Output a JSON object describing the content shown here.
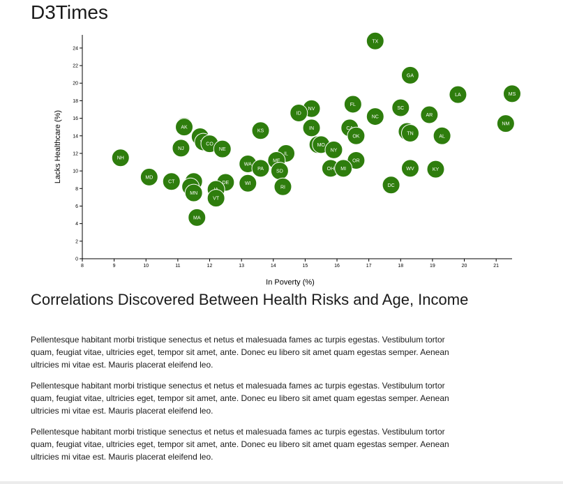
{
  "page": {
    "title": "D3Times"
  },
  "article": {
    "heading": "Correlations Discovered Between Health Risks and Age, Income",
    "paragraphs": [
      "Pellentesque habitant morbi tristique senectus et netus et malesuada fames ac turpis egestas. Vestibulum tortor quam, feugiat vitae, ultricies eget, tempor sit amet, ante. Donec eu libero sit amet quam egestas semper. Aenean ultricies mi vitae est. Mauris placerat eleifend leo.",
      "Pellentesque habitant morbi tristique senectus et netus et malesuada fames ac turpis egestas. Vestibulum tortor quam, feugiat vitae, ultricies eget, tempor sit amet, ante. Donec eu libero sit amet quam egestas semper. Aenean ultricies mi vitae est. Mauris placerat eleifend leo.",
      "Pellentesque habitant morbi tristique senectus et netus et malesuada fames ac turpis egestas. Vestibulum tortor quam, feugiat vitae, ultricies eget, tempor sit amet, ante. Donec eu libero sit amet quam egestas semper. Aenean ultricies mi vitae est. Mauris placerat eleifend leo."
    ]
  },
  "colors": {
    "marker": "#2e7d0d",
    "marker_label": "#ffffff"
  },
  "chart_data": {
    "type": "scatter",
    "title": "",
    "xlabel": "In Poverty (%)",
    "ylabel": "Lacks Healthcare (%)",
    "xlim": [
      8,
      21.5
    ],
    "ylim": [
      0,
      25.5
    ],
    "x_ticks": [
      8,
      9,
      10,
      11,
      12,
      13,
      14,
      15,
      16,
      17,
      18,
      19,
      20,
      21
    ],
    "y_ticks": [
      0,
      2,
      4,
      6,
      8,
      10,
      12,
      14,
      16,
      18,
      20,
      22,
      24
    ],
    "grid": false,
    "legend": "none",
    "points": [
      {
        "label": "TX",
        "x": 17.2,
        "y": 24.8
      },
      {
        "label": "GA",
        "x": 18.3,
        "y": 20.9
      },
      {
        "label": "LA",
        "x": 19.8,
        "y": 18.7
      },
      {
        "label": "MS",
        "x": 21.5,
        "y": 18.8
      },
      {
        "label": "FL",
        "x": 16.5,
        "y": 17.6
      },
      {
        "label": "SC",
        "x": 18.0,
        "y": 17.2
      },
      {
        "label": "NV",
        "x": 15.2,
        "y": 17.1
      },
      {
        "label": "ID",
        "x": 14.8,
        "y": 16.6
      },
      {
        "label": "NC",
        "x": 17.2,
        "y": 16.2
      },
      {
        "label": "AR",
        "x": 18.9,
        "y": 16.4
      },
      {
        "label": "NM",
        "x": 21.3,
        "y": 15.4
      },
      {
        "label": "WY",
        "x": 11.2,
        "y": 15.1
      },
      {
        "label": "AK",
        "x": 11.2,
        "y": 15.0
      },
      {
        "label": "CA",
        "x": 16.4,
        "y": 14.9
      },
      {
        "label": "IN",
        "x": 15.2,
        "y": 14.9
      },
      {
        "label": "KS",
        "x": 13.6,
        "y": 14.6
      },
      {
        "label": "AZ",
        "x": 18.2,
        "y": 14.5
      },
      {
        "label": "TN",
        "x": 18.3,
        "y": 14.3
      },
      {
        "label": "OK",
        "x": 16.6,
        "y": 14.0
      },
      {
        "label": "AL",
        "x": 19.3,
        "y": 14.0
      },
      {
        "label": "UT",
        "x": 11.7,
        "y": 13.9
      },
      {
        "label": "VA",
        "x": 11.8,
        "y": 13.3
      },
      {
        "label": "CO",
        "x": 12.0,
        "y": 13.1
      },
      {
        "label": "MT",
        "x": 15.4,
        "y": 13.0
      },
      {
        "label": "MO",
        "x": 15.5,
        "y": 13.0
      },
      {
        "label": "NJ",
        "x": 11.1,
        "y": 12.6
      },
      {
        "label": "NE",
        "x": 12.4,
        "y": 12.5
      },
      {
        "label": "NY",
        "x": 15.9,
        "y": 12.4
      },
      {
        "label": "IL",
        "x": 14.4,
        "y": 12.0
      },
      {
        "label": "NH",
        "x": 9.2,
        "y": 11.5
      },
      {
        "label": "ME",
        "x": 14.1,
        "y": 11.2
      },
      {
        "label": "OR",
        "x": 16.6,
        "y": 11.2
      },
      {
        "label": "WA",
        "x": 13.2,
        "y": 10.8
      },
      {
        "label": "PA",
        "x": 13.6,
        "y": 10.3
      },
      {
        "label": "OH",
        "x": 15.8,
        "y": 10.3
      },
      {
        "label": "MI",
        "x": 16.2,
        "y": 10.3
      },
      {
        "label": "WV",
        "x": 18.3,
        "y": 10.3
      },
      {
        "label": "KY",
        "x": 19.1,
        "y": 10.2
      },
      {
        "label": "SD",
        "x": 14.2,
        "y": 10.0
      },
      {
        "label": "MD",
        "x": 10.1,
        "y": 9.3
      },
      {
        "label": "CT",
        "x": 10.8,
        "y": 8.8
      },
      {
        "label": "ND",
        "x": 11.5,
        "y": 8.8
      },
      {
        "label": "DE",
        "x": 12.5,
        "y": 8.7
      },
      {
        "label": "WI",
        "x": 13.2,
        "y": 8.6
      },
      {
        "label": "DC",
        "x": 17.7,
        "y": 8.4
      },
      {
        "label": "HI",
        "x": 11.4,
        "y": 8.2
      },
      {
        "label": "RI",
        "x": 14.3,
        "y": 8.2
      },
      {
        "label": "IA",
        "x": 12.2,
        "y": 7.9
      },
      {
        "label": "MN",
        "x": 11.5,
        "y": 7.5
      },
      {
        "label": "VT",
        "x": 12.2,
        "y": 6.9
      },
      {
        "label": "MA",
        "x": 11.6,
        "y": 4.7
      }
    ]
  }
}
